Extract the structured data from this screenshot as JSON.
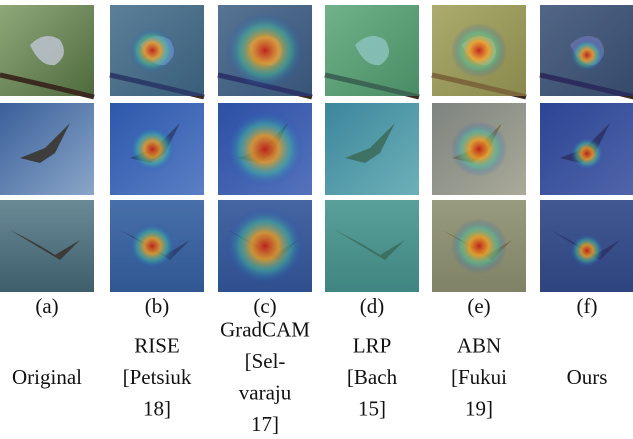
{
  "figure": {
    "columns": [
      {
        "label": "(a)",
        "caption": [
          "Original"
        ]
      },
      {
        "label": "(b)",
        "caption": [
          "RISE",
          "[Petsiuk",
          "18]"
        ]
      },
      {
        "label": "(c)",
        "caption": [
          "GradCAM",
          "[Sel-",
          "varaju",
          "17]"
        ]
      },
      {
        "label": "(d)",
        "caption": [
          "LRP",
          "[Bach",
          "15]"
        ]
      },
      {
        "label": "(e)",
        "caption": [
          "ABN",
          "[Fukui",
          "19]"
        ]
      },
      {
        "label": "(f)",
        "caption": [
          "Ours"
        ]
      }
    ]
  }
}
